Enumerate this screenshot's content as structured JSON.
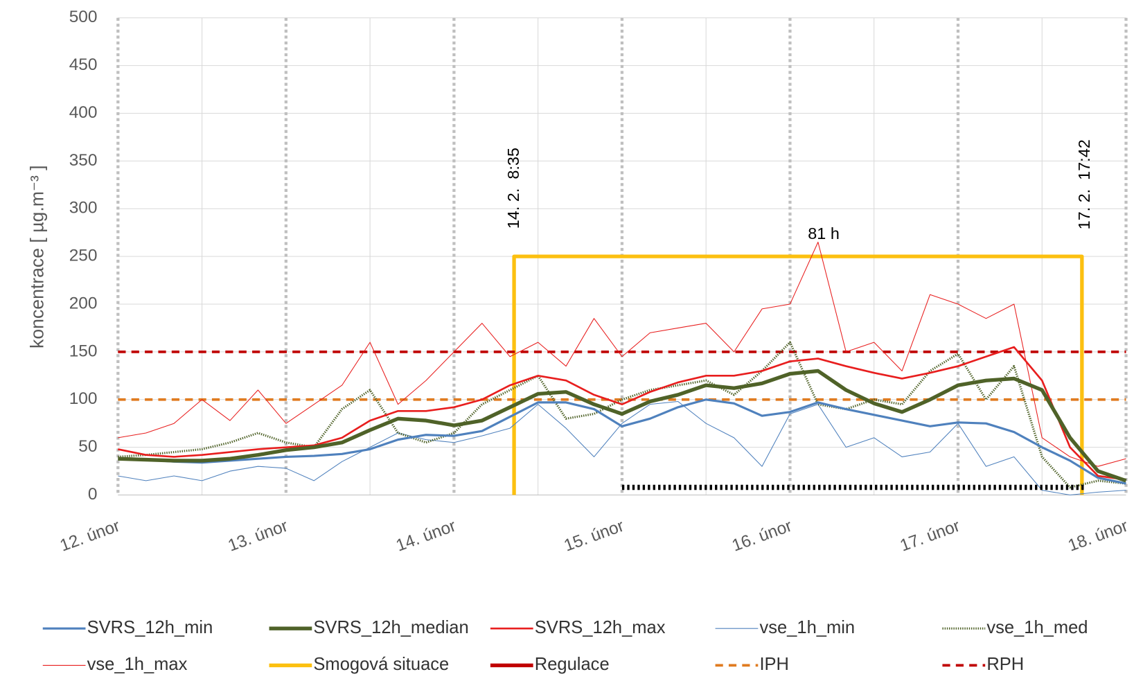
{
  "chart_data": {
    "type": "line",
    "ylabel": "koncentrace [ µg.m⁻³ ]",
    "xlim": [
      0,
      144
    ],
    "xticks": [
      {
        "value": 0,
        "label": "12. únor"
      },
      {
        "value": 24,
        "label": "13. únor"
      },
      {
        "value": 48,
        "label": "14. únor"
      },
      {
        "value": 72,
        "label": "15. únor"
      },
      {
        "value": 96,
        "label": "16. únor"
      },
      {
        "value": 120,
        "label": "17. únor"
      },
      {
        "value": 144,
        "label": "18. únor"
      }
    ],
    "xminorticks": [
      12,
      36,
      60,
      84,
      108,
      132
    ],
    "ylim": [
      0,
      500
    ],
    "yticks": [
      0,
      50,
      100,
      150,
      200,
      250,
      300,
      350,
      400,
      450,
      500
    ],
    "grid": true,
    "legend": "bottom",
    "x": [
      0,
      4,
      8,
      12,
      16,
      20,
      24,
      28,
      32,
      36,
      40,
      44,
      48,
      52,
      56,
      60,
      64,
      68,
      72,
      76,
      80,
      84,
      88,
      92,
      96,
      100,
      104,
      108,
      112,
      116,
      120,
      124,
      128,
      132,
      136,
      140,
      144
    ],
    "series": [
      {
        "name": "SVRS_12h_min",
        "color": "#4f81bd",
        "dash": "solid",
        "values": [
          38,
          37,
          35,
          34,
          36,
          38,
          40,
          41,
          43,
          48,
          58,
          63,
          62,
          67,
          82,
          97,
          97,
          90,
          72,
          80,
          92,
          100,
          96,
          83,
          87,
          97,
          90,
          84,
          78,
          72,
          76,
          75,
          66,
          50,
          36,
          18,
          12
        ]
      },
      {
        "name": "SVRS_12h_median",
        "color": "#4f6228",
        "dash": "solid",
        "values": [
          38,
          37,
          36,
          36,
          38,
          42,
          47,
          50,
          55,
          68,
          80,
          78,
          73,
          78,
          92,
          106,
          108,
          95,
          85,
          98,
          105,
          115,
          112,
          117,
          127,
          130,
          110,
          96,
          87,
          100,
          115,
          120,
          122,
          110,
          60,
          25,
          15
        ]
      },
      {
        "name": "SVRS_12h_max",
        "color": "#e81e1e",
        "dash": "solid",
        "values": [
          48,
          42,
          40,
          42,
          45,
          48,
          50,
          52,
          60,
          78,
          88,
          88,
          92,
          100,
          115,
          125,
          120,
          105,
          95,
          108,
          118,
          125,
          125,
          130,
          140,
          143,
          135,
          128,
          122,
          128,
          135,
          145,
          155,
          120,
          50,
          20,
          16
        ]
      },
      {
        "name": "vse_1h_min",
        "color": "#4f81bd",
        "dash": "solid",
        "values": [
          20,
          15,
          20,
          15,
          25,
          30,
          28,
          15,
          35,
          50,
          65,
          58,
          55,
          62,
          70,
          95,
          70,
          40,
          75,
          95,
          98,
          75,
          60,
          30,
          85,
          95,
          50,
          60,
          40,
          45,
          75,
          30,
          40,
          5,
          0,
          3,
          5
        ]
      },
      {
        "name": "vse_1h_med",
        "color": "#4f6228",
        "dash": "dotted",
        "values": [
          40,
          42,
          45,
          48,
          55,
          65,
          55,
          50,
          90,
          110,
          65,
          55,
          65,
          95,
          110,
          125,
          80,
          85,
          100,
          110,
          115,
          120,
          105,
          130,
          160,
          95,
          90,
          100,
          95,
          130,
          148,
          100,
          135,
          40,
          8,
          15,
          12
        ]
      },
      {
        "name": "vse_1h_max",
        "color": "#e81e1e",
        "dash": "solid",
        "values": [
          60,
          65,
          75,
          100,
          78,
          110,
          75,
          95,
          115,
          160,
          95,
          120,
          150,
          180,
          145,
          160,
          135,
          185,
          145,
          170,
          175,
          180,
          150,
          195,
          200,
          265,
          150,
          160,
          130,
          210,
          200,
          185,
          200,
          60,
          40,
          30,
          38
        ]
      },
      {
        "name": "Smogová situace",
        "color": "#fcc010",
        "dash": "solid",
        "x": [
          56.58,
          56.58,
          137.7,
          137.7
        ],
        "values": [
          0,
          250,
          250,
          0
        ]
      },
      {
        "name": "Regulace",
        "color": "#c00000",
        "line_color": "#000000",
        "dash": "dotted",
        "x": [
          72,
          138
        ],
        "values": [
          8,
          8
        ]
      },
      {
        "name": "IPH",
        "color": "#e07b20",
        "dash": "dashed",
        "x": [
          0,
          144
        ],
        "values": [
          100,
          100
        ]
      },
      {
        "name": "RPH",
        "color": "#c00000",
        "dash": "dashed",
        "x": [
          0,
          144
        ],
        "values": [
          150,
          150
        ]
      }
    ],
    "annotations": [
      "14. 2.  8:35",
      "17. 2.  17:42",
      "81 h"
    ]
  }
}
